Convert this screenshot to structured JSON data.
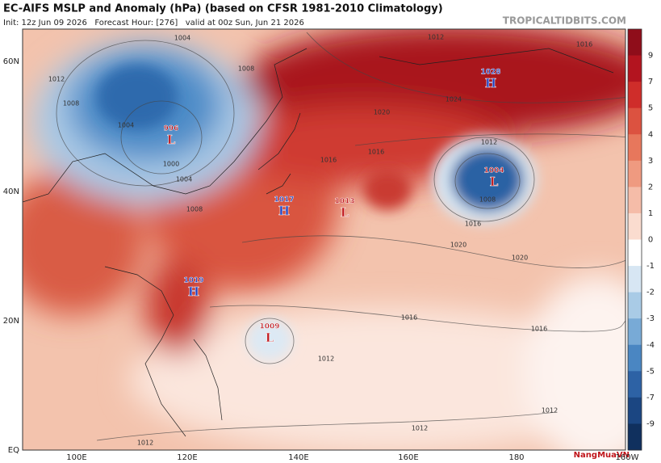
{
  "header": {
    "title": "EC-AIFS MSLP and Anomaly (hPa) (based on CFSR 1981-2010 Climatology)",
    "subtitle": "Init: 12z Jun 09 2026   Forecast Hour: [276]   valid at 00z Sun, Jun 21 2026",
    "site": "TROPICALTIDBITS.COM"
  },
  "map": {
    "lat_labels": [
      "60N",
      "40N",
      "20N",
      "EQ"
    ],
    "lon_labels": [
      "100E",
      "120E",
      "140E",
      "160E",
      "180",
      "160W"
    ],
    "centers": [
      {
        "type": "L",
        "value": "996"
      },
      {
        "type": "H",
        "value": "1017"
      },
      {
        "type": "L",
        "value": "1013"
      },
      {
        "type": "H",
        "value": "1028"
      },
      {
        "type": "L",
        "value": "1004"
      },
      {
        "type": "H",
        "value": "1019"
      },
      {
        "type": "L",
        "value": "1009"
      }
    ],
    "isobar_labels": [
      "1004",
      "1012",
      "1008",
      "1012",
      "1008",
      "1004",
      "1000",
      "1004",
      "1008",
      "1016",
      "1016",
      "1012",
      "1008",
      "1016",
      "1020",
      "1020",
      "1016",
      "1016",
      "1012",
      "1012",
      "1012",
      "1012",
      "1016",
      "1020",
      "1024"
    ]
  },
  "colorbar": {
    "ticks": [
      9,
      7,
      5,
      4,
      3,
      2,
      1,
      0,
      -1,
      -2,
      -3,
      -4,
      -5,
      -7,
      -9
    ]
  },
  "watermark": "NangMuaVN"
}
